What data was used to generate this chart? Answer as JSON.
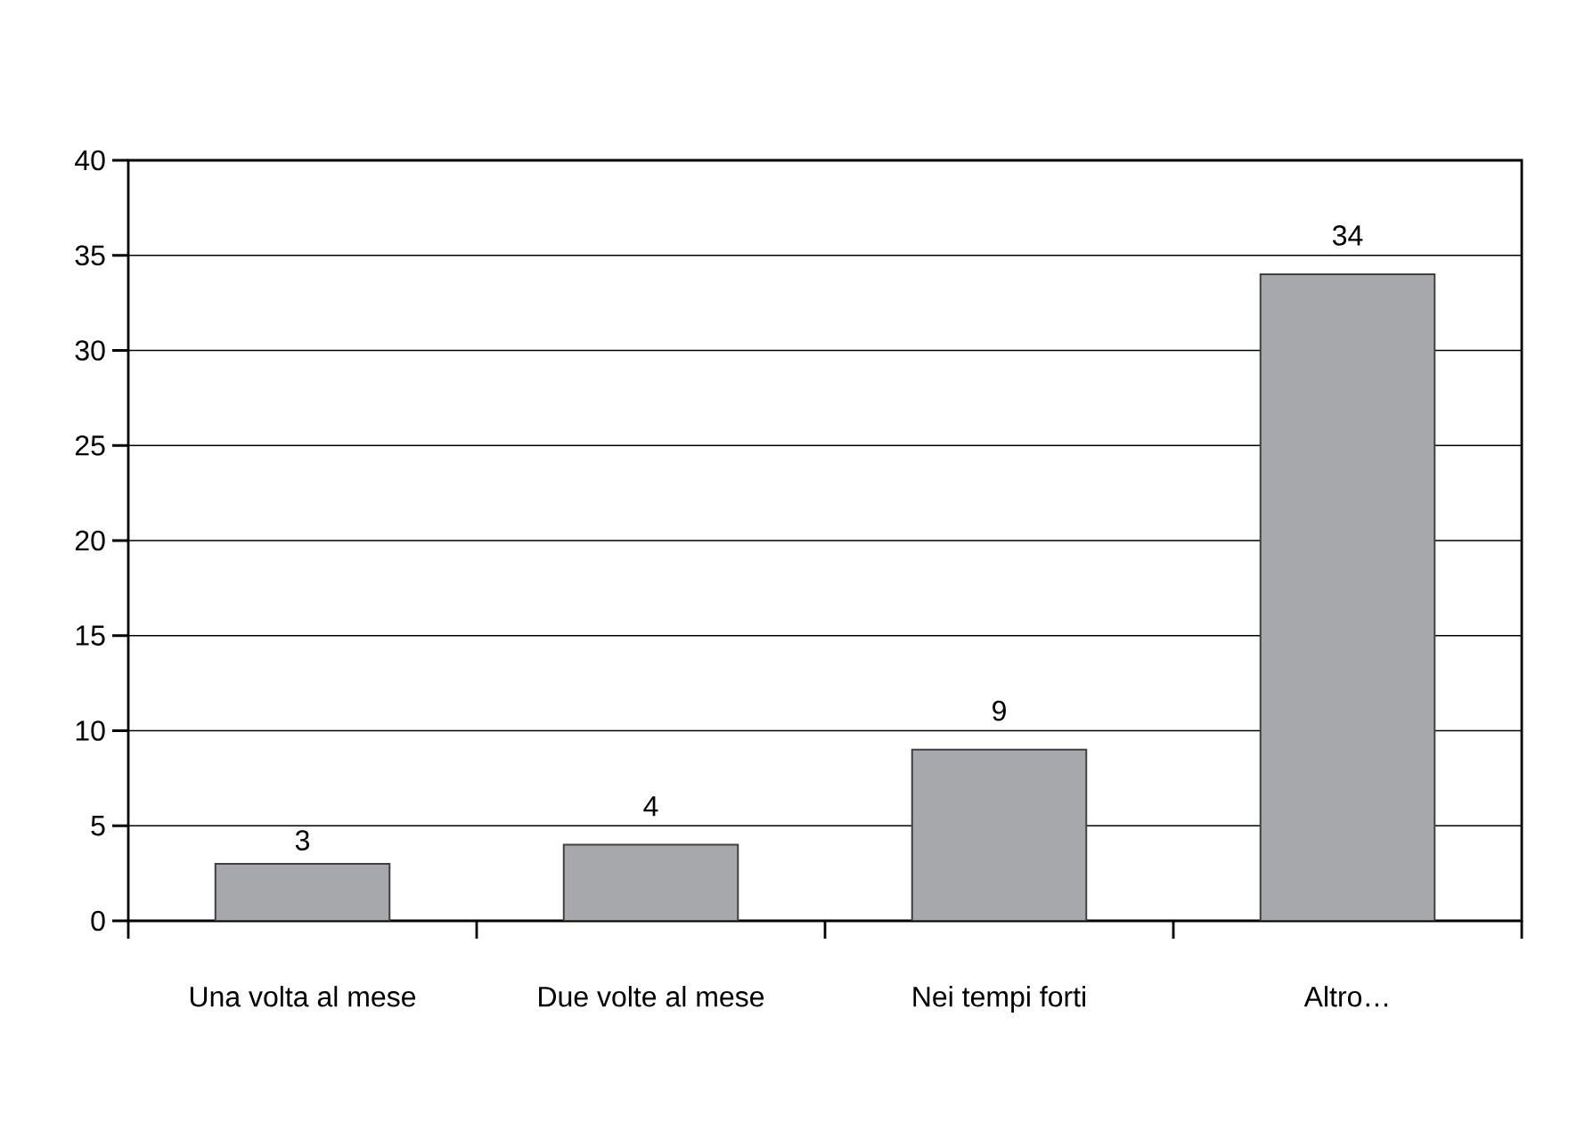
{
  "chart_data": {
    "type": "bar",
    "categories": [
      "Una volta al mese",
      "Due volte al mese",
      "Nei tempi forti",
      "Altro…"
    ],
    "values": [
      3,
      4,
      9,
      34
    ],
    "color": "#a7a8ab",
    "ylim": [
      0,
      40
    ],
    "yticks": [
      0,
      5,
      10,
      15,
      20,
      25,
      30,
      35,
      40
    ],
    "grid": "y",
    "data_labels": true
  }
}
